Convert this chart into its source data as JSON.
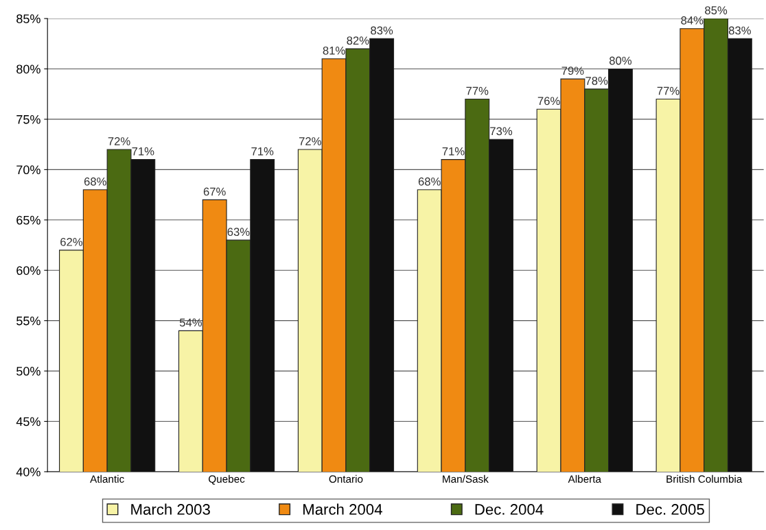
{
  "chart_data": {
    "type": "bar",
    "categories": [
      "Atlantic",
      "Quebec",
      "Ontario",
      "Man/Sask",
      "Alberta",
      "British Columbia"
    ],
    "series": [
      {
        "name": "March 2003",
        "color": "#f7f3a6",
        "values": [
          62,
          54,
          72,
          68,
          76,
          77
        ],
        "value_labels": [
          "62%",
          "54%",
          "72%",
          "68%",
          "76%",
          "77%"
        ]
      },
      {
        "name": "March 2004",
        "color": "#f08a12",
        "values": [
          68,
          67,
          81,
          71,
          79,
          84
        ],
        "value_labels": [
          "68%",
          "67%",
          "81%",
          "71%",
          "79%",
          "84%"
        ]
      },
      {
        "name": "Dec. 2004",
        "color": "#4b6a12",
        "values": [
          72,
          63,
          82,
          77,
          78,
          85
        ],
        "value_labels": [
          "72%",
          "63%",
          "82%",
          "77%",
          "78%",
          "85%"
        ]
      },
      {
        "name": "Dec. 2005",
        "color": "#111111",
        "values": [
          71,
          71,
          83,
          73,
          80,
          83
        ],
        "value_labels": [
          "71%",
          "71%",
          "83%",
          "73%",
          "80%",
          "83%"
        ]
      }
    ],
    "ylim": [
      40,
      85
    ],
    "yticks": [
      {
        "value": 40,
        "label": "40%"
      },
      {
        "value": 45,
        "label": "45%"
      },
      {
        "value": 50,
        "label": "50%"
      },
      {
        "value": 55,
        "label": "55%"
      },
      {
        "value": 60,
        "label": "60%"
      },
      {
        "value": 65,
        "label": "65%"
      },
      {
        "value": 70,
        "label": "70%"
      },
      {
        "value": 75,
        "label": "75%"
      },
      {
        "value": 80,
        "label": "80%"
      },
      {
        "value": 85,
        "label": "85%"
      }
    ],
    "grid": "y",
    "legend": "bottom"
  }
}
